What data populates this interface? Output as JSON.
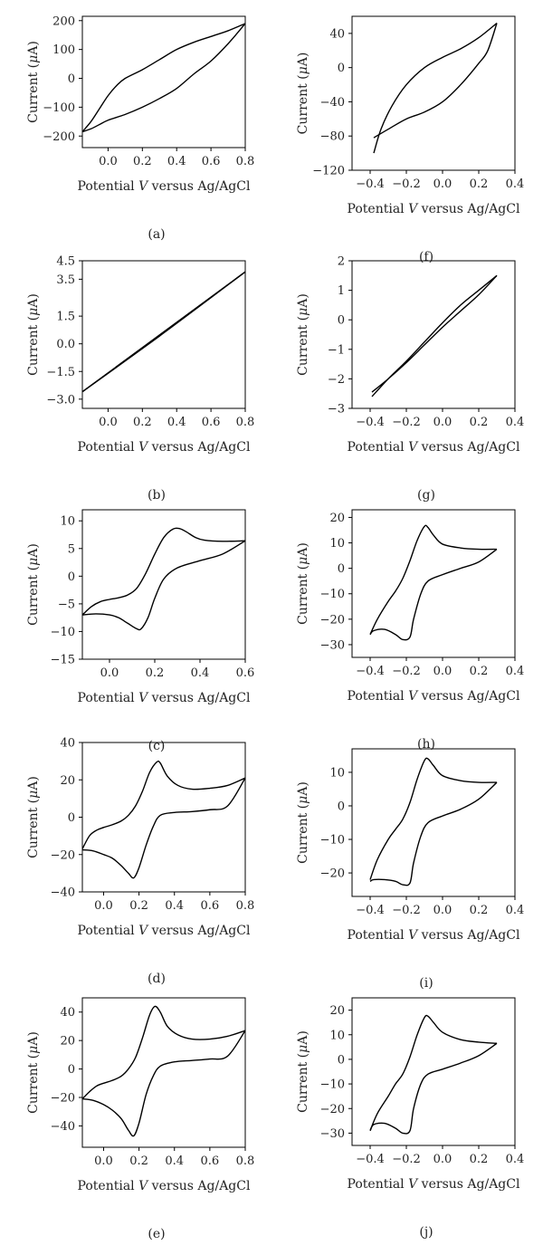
{
  "chart_data": [
    {
      "id": "a",
      "panel_label": "(a)",
      "type": "line",
      "xlabel_pre": "Potential ",
      "xlabel_var": "V",
      "xlabel_post": " versus Ag/AgCl",
      "ylabel_pre": "Current (",
      "ylabel_var": "μ",
      "ylabel_post": "A)",
      "xlim": [
        -0.15,
        0.8
      ],
      "ylim": [
        -240,
        215
      ],
      "xticks": [
        0.0,
        0.2,
        0.4,
        0.6,
        0.8
      ],
      "xtick_labels": [
        "0.0",
        "0.2",
        "0.4",
        "0.6",
        "0.8"
      ],
      "yticks": [
        200,
        100,
        0,
        -100,
        -200
      ],
      "ytick_labels": [
        "200",
        "100",
        "0",
        "−100",
        "−200"
      ],
      "series": [
        {
          "x": [
            -0.15,
            -0.1,
            -0.05,
            0.0,
            0.05,
            0.1,
            0.2,
            0.3,
            0.4,
            0.5,
            0.6,
            0.7,
            0.8
          ],
          "y": [
            -185,
            -150,
            -105,
            -60,
            -25,
            0,
            30,
            65,
            100,
            125,
            145,
            165,
            190
          ]
        },
        {
          "x": [
            0.8,
            0.7,
            0.6,
            0.5,
            0.4,
            0.3,
            0.2,
            0.1,
            0.0,
            -0.05,
            -0.1,
            -0.15
          ],
          "y": [
            190,
            120,
            60,
            15,
            -35,
            -70,
            -100,
            -125,
            -145,
            -160,
            -175,
            -185
          ]
        }
      ]
    },
    {
      "id": "f",
      "panel_label": "(f)",
      "type": "line",
      "xlabel_pre": "Potential ",
      "xlabel_var": "V",
      "xlabel_post": " versus Ag/AgCl",
      "ylabel_pre": "Current (",
      "ylabel_var": "μ",
      "ylabel_post": "A)",
      "xlim": [
        -0.5,
        0.4
      ],
      "ylim": [
        -120,
        60
      ],
      "xticks": [
        -0.4,
        -0.2,
        0.0,
        0.2,
        0.4
      ],
      "xtick_labels": [
        "−0.4",
        "−0.2",
        "0.0",
        "0.2",
        "0.4"
      ],
      "yticks": [
        40,
        0,
        -40,
        -80,
        -120
      ],
      "ytick_labels": [
        "40",
        "0",
        "−40",
        "−80",
        "−120"
      ],
      "series": [
        {
          "x": [
            -0.38,
            -0.34,
            -0.28,
            -0.2,
            -0.1,
            0.0,
            0.1,
            0.2,
            0.3
          ],
          "y": [
            -100,
            -72,
            -45,
            -20,
            0,
            12,
            22,
            35,
            52
          ]
        },
        {
          "x": [
            0.3,
            0.25,
            0.2,
            0.1,
            0.0,
            -0.1,
            -0.2,
            -0.3,
            -0.38
          ],
          "y": [
            52,
            20,
            5,
            -20,
            -40,
            -52,
            -60,
            -72,
            -82
          ]
        }
      ]
    },
    {
      "id": "b",
      "panel_label": "(b)",
      "type": "line",
      "xlabel_pre": "Potential ",
      "xlabel_var": "V",
      "xlabel_post": " versus Ag/AgCl",
      "ylabel_pre": "Current (",
      "ylabel_var": "μ",
      "ylabel_post": "A)",
      "xlim": [
        -0.15,
        0.8
      ],
      "ylim": [
        -3.5,
        4.5
      ],
      "xticks": [
        0.0,
        0.2,
        0.4,
        0.6,
        0.8
      ],
      "xtick_labels": [
        "0.0",
        "0.2",
        "0.4",
        "0.6",
        "0.8"
      ],
      "yticks": [
        4.5,
        3.5,
        1.5,
        0.0,
        -1.5,
        -3.0
      ],
      "ytick_labels": [
        "4.5",
        "3.5",
        "1.5",
        "0.0",
        "−1.5",
        "−3.0"
      ],
      "series": [
        {
          "x": [
            -0.15,
            0.8
          ],
          "y": [
            -2.6,
            3.9
          ]
        },
        {
          "x": [
            0.8,
            0.3,
            -0.15
          ],
          "y": [
            3.9,
            0.42,
            -2.6
          ]
        }
      ]
    },
    {
      "id": "g",
      "panel_label": "(g)",
      "type": "line",
      "xlabel_pre": "Potential ",
      "xlabel_var": "V",
      "xlabel_post": " versus Ag/AgCl",
      "ylabel_pre": "Current (",
      "ylabel_var": "μ",
      "ylabel_post": "A)",
      "xlim": [
        -0.5,
        0.4
      ],
      "ylim": [
        -3,
        2
      ],
      "xticks": [
        -0.4,
        -0.2,
        0.0,
        0.2,
        0.4
      ],
      "xtick_labels": [
        "−0.4",
        "−0.2",
        "0.0",
        "0.2",
        "0.4"
      ],
      "yticks": [
        2,
        1,
        0,
        -1,
        -2,
        -3
      ],
      "ytick_labels": [
        "2",
        "1",
        "0",
        "−1",
        "−2",
        "−3"
      ],
      "series": [
        {
          "x": [
            -0.39,
            -0.3,
            -0.2,
            -0.1,
            0.0,
            0.1,
            0.2,
            0.3
          ],
          "y": [
            -2.6,
            -2.0,
            -1.4,
            -0.75,
            -0.1,
            0.5,
            1.0,
            1.5
          ]
        },
        {
          "x": [
            0.3,
            0.2,
            0.1,
            0.0,
            -0.1,
            -0.2,
            -0.3,
            -0.39
          ],
          "y": [
            1.5,
            0.85,
            0.3,
            -0.25,
            -0.85,
            -1.45,
            -2.0,
            -2.45
          ]
        }
      ]
    },
    {
      "id": "c",
      "panel_label": "(c)",
      "type": "line",
      "xlabel_pre": "Potential ",
      "xlabel_var": "V",
      "xlabel_post": " versus Ag/AgCl",
      "ylabel_pre": "Current (",
      "ylabel_var": "μ",
      "ylabel_post": "A)",
      "xlim": [
        -0.12,
        0.6
      ],
      "ylim": [
        -15,
        12
      ],
      "xticks": [
        0.0,
        0.2,
        0.4,
        0.6
      ],
      "xtick_labels": [
        "0.0",
        "0.2",
        "0.4",
        "0.6"
      ],
      "yticks": [
        10,
        5,
        0,
        -5,
        -10,
        -15
      ],
      "ytick_labels": [
        "10",
        "5",
        "0",
        "−5",
        "−10",
        "−15"
      ],
      "series": [
        {
          "x": [
            -0.12,
            -0.08,
            -0.04,
            0.0,
            0.04,
            0.08,
            0.12,
            0.16,
            0.2,
            0.24,
            0.28,
            0.31,
            0.34,
            0.38,
            0.42,
            0.5,
            0.6
          ],
          "y": [
            -7,
            -5.5,
            -4.6,
            -4.2,
            -3.9,
            -3.4,
            -2.2,
            0.5,
            4.0,
            7.0,
            8.5,
            8.6,
            8.0,
            7.0,
            6.5,
            6.3,
            6.4
          ]
        },
        {
          "x": [
            0.6,
            0.5,
            0.4,
            0.3,
            0.24,
            0.2,
            0.17,
            0.14,
            0.12,
            0.08,
            0.04,
            0.0,
            -0.06,
            -0.12
          ],
          "y": [
            6.4,
            4.0,
            2.8,
            1.5,
            -0.5,
            -4.0,
            -7.5,
            -9.5,
            -9.5,
            -8.5,
            -7.5,
            -7.0,
            -6.8,
            -7.0
          ]
        }
      ]
    },
    {
      "id": "h",
      "panel_label": "(h)",
      "type": "line",
      "xlabel_pre": "Potential ",
      "xlabel_var": "V",
      "xlabel_post": " versus Ag/AgCl",
      "ylabel_pre": "Current (",
      "ylabel_var": "μ",
      "ylabel_post": "A)",
      "xlim": [
        -0.5,
        0.4
      ],
      "ylim": [
        -35,
        23
      ],
      "xticks": [
        -0.4,
        -0.2,
        0.0,
        0.2,
        0.4
      ],
      "xtick_labels": [
        "−0.4",
        "−0.2",
        "0.0",
        "0.2",
        "0.4"
      ],
      "yticks": [
        20,
        10,
        0,
        -10,
        -20,
        -30
      ],
      "ytick_labels": [
        "20",
        "10",
        "0",
        "−10",
        "−20",
        "−30"
      ],
      "series": [
        {
          "x": [
            -0.4,
            -0.36,
            -0.3,
            -0.26,
            -0.22,
            -0.18,
            -0.14,
            -0.1,
            -0.08,
            -0.05,
            0.0,
            0.1,
            0.2,
            0.3
          ],
          "y": [
            -26,
            -20,
            -13,
            -9,
            -4,
            3,
            11,
            16.5,
            16,
            13,
            9.5,
            8,
            7.5,
            7.5
          ]
        },
        {
          "x": [
            0.3,
            0.2,
            0.1,
            0.0,
            -0.08,
            -0.12,
            -0.16,
            -0.18,
            -0.22,
            -0.26,
            -0.32,
            -0.38,
            -0.4
          ],
          "y": [
            7.5,
            2.5,
            0,
            -2.5,
            -5,
            -10,
            -20,
            -27,
            -28,
            -26,
            -24,
            -24.5,
            -26
          ]
        }
      ]
    },
    {
      "id": "d",
      "panel_label": "(d)",
      "type": "line",
      "xlabel_pre": "Potential ",
      "xlabel_var": "V",
      "xlabel_post": " versus Ag/AgCl",
      "ylabel_pre": "Current (",
      "ylabel_var": "μ",
      "ylabel_post": "A)",
      "xlim": [
        -0.12,
        0.8
      ],
      "ylim": [
        -40,
        40
      ],
      "xticks": [
        0.0,
        0.2,
        0.4,
        0.6,
        0.8
      ],
      "xtick_labels": [
        "0.0",
        "0.2",
        "0.4",
        "0.6",
        "0.8"
      ],
      "yticks": [
        40,
        20,
        0,
        -20,
        -40
      ],
      "ytick_labels": [
        "40",
        "20",
        "0",
        "−20",
        "−40"
      ],
      "series": [
        {
          "x": [
            -0.12,
            -0.08,
            -0.04,
            0.0,
            0.05,
            0.1,
            0.14,
            0.18,
            0.22,
            0.26,
            0.3,
            0.32,
            0.36,
            0.42,
            0.5,
            0.6,
            0.7,
            0.8
          ],
          "y": [
            -17,
            -10,
            -7,
            -5.5,
            -4,
            -2,
            1,
            6,
            14,
            24,
            29.5,
            29,
            22,
            17,
            15,
            15.5,
            17,
            21
          ]
        },
        {
          "x": [
            0.8,
            0.7,
            0.6,
            0.5,
            0.4,
            0.32,
            0.28,
            0.24,
            0.2,
            0.17,
            0.14,
            0.1,
            0.05,
            0.0,
            -0.06,
            -0.12
          ],
          "y": [
            21,
            6,
            4,
            3,
            2.5,
            1,
            -5,
            -15,
            -27,
            -32.5,
            -30,
            -26,
            -22,
            -20,
            -18,
            -17.5
          ]
        }
      ]
    },
    {
      "id": "i",
      "panel_label": "(i)",
      "type": "line",
      "xlabel_pre": "Potential ",
      "xlabel_var": "V",
      "xlabel_post": " versus Ag/AgCl",
      "ylabel_pre": "Current (",
      "ylabel_var": "μ",
      "ylabel_post": "A)",
      "xlim": [
        -0.5,
        0.4
      ],
      "ylim": [
        -27,
        17
      ],
      "xticks": [
        -0.4,
        -0.2,
        0.0,
        0.2,
        0.4
      ],
      "xtick_labels": [
        "−0.4",
        "−0.2",
        "0.0",
        "0.2",
        "0.4"
      ],
      "yticks": [
        10,
        0,
        -10,
        -20
      ],
      "ytick_labels": [
        "10",
        "0",
        "−10",
        "−20"
      ],
      "series": [
        {
          "x": [
            -0.4,
            -0.36,
            -0.3,
            -0.26,
            -0.22,
            -0.18,
            -0.14,
            -0.1,
            -0.08,
            -0.05,
            0.0,
            0.1,
            0.2,
            0.3
          ],
          "y": [
            -22,
            -16,
            -10,
            -7,
            -4,
            1,
            8,
            13.5,
            14,
            12,
            9,
            7.5,
            7,
            7
          ]
        },
        {
          "x": [
            0.3,
            0.2,
            0.1,
            0.0,
            -0.08,
            -0.12,
            -0.16,
            -0.18,
            -0.22,
            -0.26,
            -0.32,
            -0.38,
            -0.4
          ],
          "y": [
            7,
            2,
            -1,
            -3,
            -5,
            -9,
            -17,
            -23,
            -23.5,
            -22.5,
            -22,
            -22,
            -22.5
          ]
        }
      ]
    },
    {
      "id": "e",
      "panel_label": "(e)",
      "type": "line",
      "xlabel_pre": "Potential ",
      "xlabel_var": "V",
      "xlabel_post": " versus Ag/AgCl",
      "ylabel_pre": "Current (",
      "ylabel_var": "μ",
      "ylabel_post": "A)",
      "xlim": [
        -0.12,
        0.8
      ],
      "ylim": [
        -55,
        50
      ],
      "xticks": [
        0.0,
        0.2,
        0.4,
        0.6,
        0.8
      ],
      "xtick_labels": [
        "0.0",
        "0.2",
        "0.4",
        "0.6",
        "0.8"
      ],
      "yticks": [
        40,
        20,
        0,
        -20,
        -40
      ],
      "ytick_labels": [
        "40",
        "20",
        "0",
        "−20",
        "−40"
      ],
      "series": [
        {
          "x": [
            -0.12,
            -0.08,
            -0.04,
            0.0,
            0.05,
            0.1,
            0.14,
            0.18,
            0.22,
            0.26,
            0.29,
            0.32,
            0.36,
            0.42,
            0.5,
            0.6,
            0.7,
            0.8
          ],
          "y": [
            -21,
            -16,
            -12,
            -10,
            -8,
            -5,
            0,
            8,
            22,
            38,
            44,
            40,
            30,
            24,
            21,
            21,
            23,
            27
          ]
        },
        {
          "x": [
            0.8,
            0.7,
            0.6,
            0.5,
            0.4,
            0.32,
            0.28,
            0.24,
            0.2,
            0.17,
            0.14,
            0.1,
            0.05,
            0.0,
            -0.06,
            -0.12
          ],
          "y": [
            27,
            9,
            7,
            6,
            5,
            2,
            -5,
            -18,
            -38,
            -47,
            -43,
            -35,
            -29,
            -25,
            -22,
            -21
          ]
        }
      ]
    },
    {
      "id": "j",
      "panel_label": "(j)",
      "type": "line",
      "xlabel_pre": "Potential ",
      "xlabel_var": "V",
      "xlabel_post": " versus Ag/AgCl",
      "ylabel_pre": "Current (",
      "ylabel_var": "μ",
      "ylabel_post": "A)",
      "xlim": [
        -0.5,
        0.4
      ],
      "ylim": [
        -35,
        25
      ],
      "xticks": [
        -0.4,
        -0.2,
        0.0,
        0.2,
        0.4
      ],
      "xtick_labels": [
        "−0.4",
        "−0.2",
        "0.0",
        "0.2",
        "0.4"
      ],
      "yticks": [
        20,
        10,
        0,
        -10,
        -20,
        -30
      ],
      "ytick_labels": [
        "20",
        "10",
        "0",
        "−10",
        "−20",
        "−30"
      ],
      "series": [
        {
          "x": [
            -0.4,
            -0.36,
            -0.3,
            -0.26,
            -0.22,
            -0.18,
            -0.14,
            -0.1,
            -0.08,
            -0.05,
            0.0,
            0.1,
            0.2,
            0.3
          ],
          "y": [
            -29,
            -22,
            -15,
            -10,
            -6,
            1,
            10,
            17,
            17.5,
            15,
            11,
            8,
            7,
            6.5
          ]
        },
        {
          "x": [
            0.3,
            0.2,
            0.1,
            0.0,
            -0.08,
            -0.12,
            -0.16,
            -0.18,
            -0.22,
            -0.26,
            -0.32,
            -0.38,
            -0.4
          ],
          "y": [
            6.5,
            1.5,
            -1.5,
            -4,
            -6,
            -10,
            -20,
            -29,
            -30,
            -28,
            -26,
            -26.5,
            -29
          ]
        }
      ]
    }
  ]
}
